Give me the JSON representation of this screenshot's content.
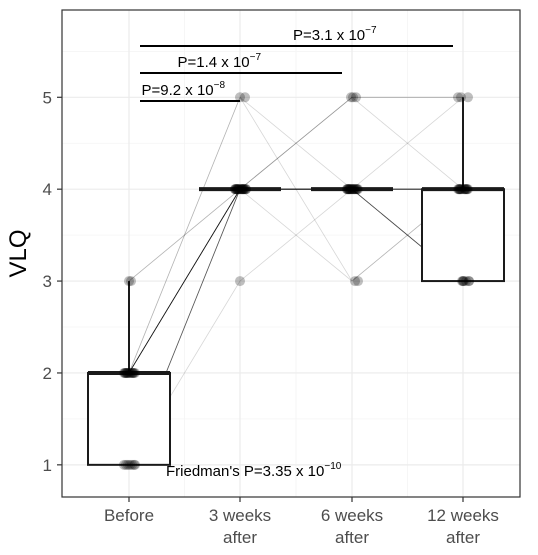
{
  "chart_data": {
    "type": "box",
    "ylabel": "VLQ",
    "xlabel": "",
    "ylim": [
      0.65,
      5.95
    ],
    "yticks": [
      1,
      2,
      3,
      4,
      5
    ],
    "grid": true,
    "categories": [
      "Before",
      "3 weeks\nafter",
      "6 weeks\nafter",
      "12 weeks\nafter"
    ],
    "boxes": [
      {
        "min": 1,
        "q1": 1,
        "median": 2,
        "q3": 2,
        "max": 3
      },
      {
        "min": 4,
        "q1": 4,
        "median": 4,
        "q3": 4,
        "max": 4
      },
      {
        "min": 4,
        "q1": 4,
        "median": 4,
        "q3": 4,
        "max": 4
      },
      {
        "min": 3,
        "q1": 3,
        "median": 4,
        "q3": 4,
        "max": 5
      }
    ],
    "subjects": [
      [
        1,
        4,
        4,
        4
      ],
      [
        1,
        4,
        4,
        4
      ],
      [
        1,
        4,
        4,
        3
      ],
      [
        1,
        4,
        5,
        5
      ],
      [
        1,
        4,
        4,
        4
      ],
      [
        1,
        3,
        4,
        3
      ],
      [
        2,
        4,
        4,
        4
      ],
      [
        2,
        4,
        4,
        3
      ],
      [
        2,
        4,
        4,
        4
      ],
      [
        2,
        4,
        5,
        4
      ],
      [
        2,
        4,
        4,
        4
      ],
      [
        2,
        4,
        4,
        3
      ],
      [
        2,
        4,
        4,
        4
      ],
      [
        2,
        4,
        4,
        5
      ],
      [
        2,
        5,
        4,
        3
      ],
      [
        2,
        4,
        4,
        4
      ],
      [
        2,
        4,
        4,
        4
      ],
      [
        2,
        5,
        3,
        4
      ],
      [
        2,
        4,
        4,
        3
      ],
      [
        3,
        4,
        4,
        4
      ],
      [
        3,
        4,
        5,
        5
      ],
      [
        2,
        4,
        4,
        4
      ],
      [
        2,
        4,
        3,
        4
      ],
      [
        1,
        4,
        4,
        3
      ]
    ],
    "comparisons": [
      {
        "from": 0,
        "to": 1,
        "p": "P=9.2 x 10",
        "exp": "−8"
      },
      {
        "from": 0,
        "to": 2,
        "p": "P=1.4 x 10",
        "exp": "−7"
      },
      {
        "from": 0,
        "to": 3,
        "p": "P=3.1 x 10",
        "exp": "−7"
      }
    ],
    "friedman": {
      "text": "Friedman's  P=3.35 x 10",
      "exp": "−10"
    }
  }
}
